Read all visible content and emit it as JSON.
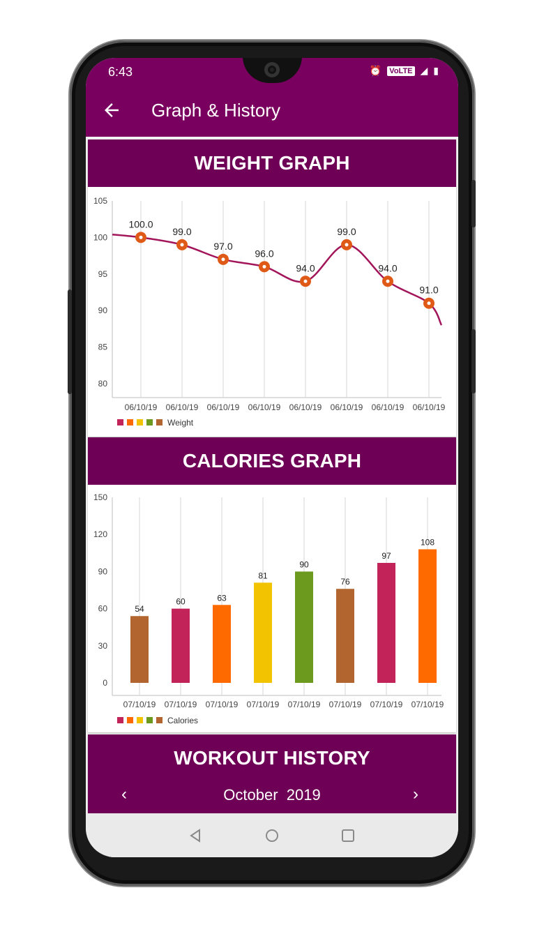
{
  "status_bar": {
    "time": "6:43",
    "network": "VoLTE"
  },
  "app_bar": {
    "title": "Graph & History"
  },
  "weight_section": {
    "header": "WEIGHT GRAPH",
    "legend_label": "Weight",
    "point_labels": [
      "100.0",
      "99.0",
      "97.0",
      "96.0",
      "94.0",
      "99.0",
      "94.0",
      "91.0"
    ],
    "y_ticks": [
      "105",
      "100",
      "95",
      "90",
      "85",
      "80"
    ],
    "x_ticks": [
      "06/10/19",
      "06/10/19",
      "06/10/19",
      "06/10/19",
      "06/10/19",
      "06/10/19",
      "06/10/19",
      "06/10/19"
    ]
  },
  "calories_section": {
    "header": "CALORIES GRAPH",
    "legend_label": "Calories",
    "bar_labels": [
      "54",
      "60",
      "63",
      "81",
      "90",
      "76",
      "97",
      "108"
    ],
    "y_ticks": [
      "150",
      "120",
      "90",
      "60",
      "30",
      "0"
    ],
    "x_ticks": [
      "07/10/19",
      "07/10/19",
      "07/10/19",
      "07/10/19",
      "07/10/19",
      "07/10/19",
      "07/10/19",
      "07/10/19"
    ]
  },
  "workout_section": {
    "header": "WORKOUT HISTORY",
    "month_label": "October  2019"
  },
  "colors": {
    "app_bar": "#7a0060",
    "card_header": "#6e0055",
    "weight_line": "#a3155a",
    "weight_point": "#e05a17",
    "palette": [
      "#c2245a",
      "#ff6a00",
      "#f2c300",
      "#6b9a1f",
      "#b2652f"
    ]
  },
  "chart_data": [
    {
      "type": "line",
      "x": [
        "06/10/19",
        "06/10/19",
        "06/10/19",
        "06/10/19",
        "06/10/19",
        "06/10/19",
        "06/10/19",
        "06/10/19"
      ],
      "series": [
        {
          "name": "Weight",
          "values": [
            100.0,
            99.0,
            97.0,
            96.0,
            94.0,
            99.0,
            94.0,
            91.0
          ]
        }
      ],
      "ylim": [
        80,
        105
      ],
      "yticks": [
        80,
        85,
        90,
        95,
        100,
        105
      ],
      "grid": "vertical"
    },
    {
      "type": "bar",
      "categories": [
        "07/10/19",
        "07/10/19",
        "07/10/19",
        "07/10/19",
        "07/10/19",
        "07/10/19",
        "07/10/19",
        "07/10/19"
      ],
      "series": [
        {
          "name": "Calories",
          "values": [
            54,
            60,
            63,
            81,
            90,
            76,
            97,
            108
          ]
        }
      ],
      "bar_colors": [
        "#b2652f",
        "#c2245a",
        "#ff6a00",
        "#f2c300",
        "#6b9a1f",
        "#b2652f",
        "#c2245a",
        "#ff6a00"
      ],
      "ylim": [
        0,
        150
      ],
      "yticks": [
        0,
        30,
        60,
        90,
        120,
        150
      ],
      "grid": "vertical"
    }
  ]
}
